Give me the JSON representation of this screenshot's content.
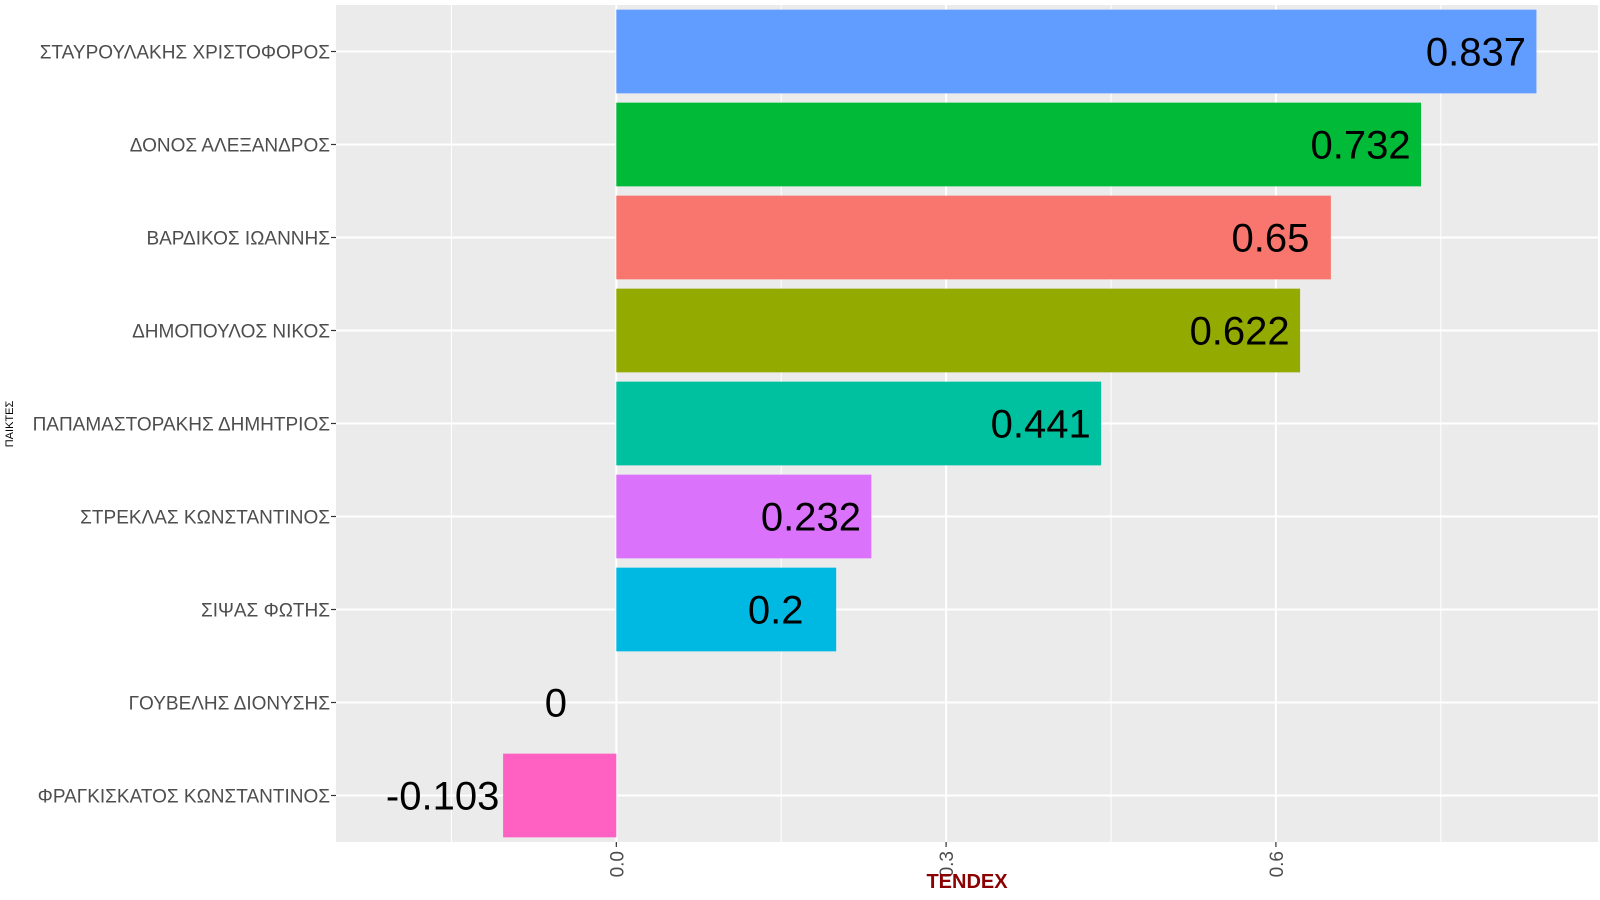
{
  "chart_data": {
    "type": "bar",
    "orientation": "horizontal",
    "xlabel": "TENDEX",
    "ylabel": "ΠΑΙΚΤΕΣ",
    "xlim": [
      -0.255,
      0.893
    ],
    "x_ticks": [
      0.0,
      0.3,
      0.6
    ],
    "x_tick_labels": [
      "0.0",
      "0.3",
      "0.6"
    ],
    "grid": true,
    "legend": "none",
    "xlabel_color": "#8B0000",
    "panel_background": "#EBEBEB",
    "categories": [
      "ΣΤΑΥΡΟΥΛΑΚΗΣ ΧΡΙΣΤΟΦΟΡΟΣ",
      "ΔΟΝΟΣ ΑΛΕΞΑΝΔΡΟΣ",
      "ΒΑΡΔΙΚΟΣ ΙΩΑΝΝΗΣ",
      "ΔΗΜΟΠΟΥΛΟΣ ΝΙΚΟΣ",
      "ΠΑΠΑΜΑΣΤΟΡΑΚΗΣ ΔΗΜΗΤΡΙΟΣ",
      "ΣΤΡΕΚΛΑΣ ΚΩΝΣΤΑΝΤΙΝΟΣ",
      "ΣΙΨΑΣ ΦΩΤΗΣ",
      "ΓΟΥΒΕΛΗΣ ΔΙΟΝΥΣΗΣ",
      "ΦΡΑΓΚΙΣΚΑΤΟΣ ΚΩΝΣΤΑΝΤΙΝΟΣ"
    ],
    "values": [
      0.837,
      0.732,
      0.65,
      0.622,
      0.441,
      0.232,
      0.2,
      0,
      -0.103
    ],
    "value_labels": [
      "0.837",
      "0.732",
      "0.65",
      "0.622",
      "0.441",
      "0.232",
      "0.2",
      "0",
      "-0.103"
    ],
    "colors": [
      "#619CFF",
      "#00BA38",
      "#F8766D",
      "#93AA00",
      "#00C19F",
      "#DB72FB",
      "#00B9E3",
      "#D39200",
      "#FF61C3"
    ]
  }
}
